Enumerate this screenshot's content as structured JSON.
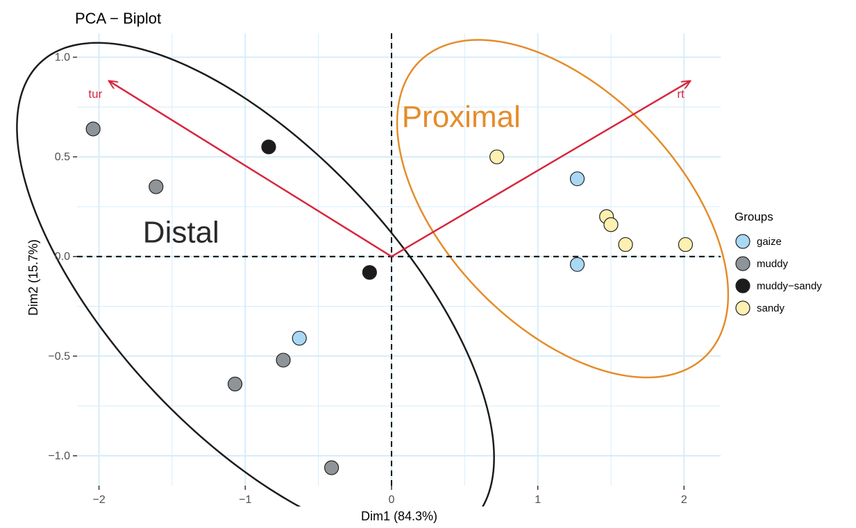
{
  "chart_data": {
    "type": "scatter",
    "title": "PCA − Biplot",
    "xlabel": "Dim1 (84.3%)",
    "ylabel": "Dim2 (15.7%)",
    "xlim": [
      -2.15,
      2.25
    ],
    "ylim": [
      -1.15,
      1.12
    ],
    "x_ticks": [
      -2,
      -1,
      0,
      1,
      2
    ],
    "x_tick_labels": [
      "−2",
      "−1",
      "0",
      "1",
      "2"
    ],
    "y_ticks": [
      -1.0,
      -0.5,
      0.0,
      0.5,
      1.0
    ],
    "y_tick_labels": [
      "−1.0",
      "−0.5",
      "0.0",
      "0.5",
      "1.0"
    ],
    "grid": true,
    "legend": {
      "title": "Groups",
      "position": "right",
      "entries": [
        {
          "label": "gaize",
          "color": "#a9d8f5"
        },
        {
          "label": "muddy",
          "color": "#8f9498"
        },
        {
          "label": "muddy−sandy",
          "color": "#1c1c1c"
        },
        {
          "label": "sandy",
          "color": "#fdf0b0"
        }
      ]
    },
    "series": [
      {
        "name": "gaize",
        "color": "#a9d8f5",
        "points": [
          [
            1.27,
            0.39
          ],
          [
            1.27,
            -0.04
          ],
          [
            -0.63,
            -0.41
          ]
        ]
      },
      {
        "name": "muddy",
        "color": "#8f9498",
        "points": [
          [
            -2.04,
            0.64
          ],
          [
            -1.61,
            0.35
          ],
          [
            -0.74,
            -0.52
          ],
          [
            -1.07,
            -0.64
          ],
          [
            -0.41,
            -1.06
          ]
        ]
      },
      {
        "name": "muddy−sandy",
        "color": "#1c1c1c",
        "points": [
          [
            -0.84,
            0.55
          ],
          [
            -0.15,
            -0.08
          ]
        ]
      },
      {
        "name": "sandy",
        "color": "#fdf0b0",
        "points": [
          [
            0.72,
            0.5
          ],
          [
            1.47,
            0.2
          ],
          [
            1.5,
            0.16
          ],
          [
            1.6,
            0.06
          ],
          [
            2.01,
            0.06
          ]
        ]
      }
    ],
    "vectors": [
      {
        "label": "tur",
        "x": -1.93,
        "y": 0.88,
        "color": "#d7263d"
      },
      {
        "label": "rt",
        "x": 2.04,
        "y": 0.88,
        "color": "#d7263d"
      }
    ],
    "ellipses": [
      {
        "label": "Distal",
        "center": [
          -0.93,
          -0.18
        ],
        "semi_axes": [
          1.89,
          0.81
        ],
        "angle_deg": -34,
        "color": "#1c1c1c"
      },
      {
        "label": "Proximal",
        "center": [
          1.17,
          0.24
        ],
        "semi_axes": [
          1.25,
          0.66
        ],
        "angle_deg": -30,
        "color": "#e58c2a"
      }
    ],
    "overlap_fill": "#a9d8f5",
    "reference_lines": {
      "x": 0,
      "y": 0
    },
    "annotations": [
      {
        "text": "Distal",
        "x": -1.7,
        "y": 0.07,
        "color": "#2a2a2a"
      },
      {
        "text": "Proximal",
        "x": 0.07,
        "y": 0.65,
        "color": "#e58c2a"
      }
    ]
  }
}
